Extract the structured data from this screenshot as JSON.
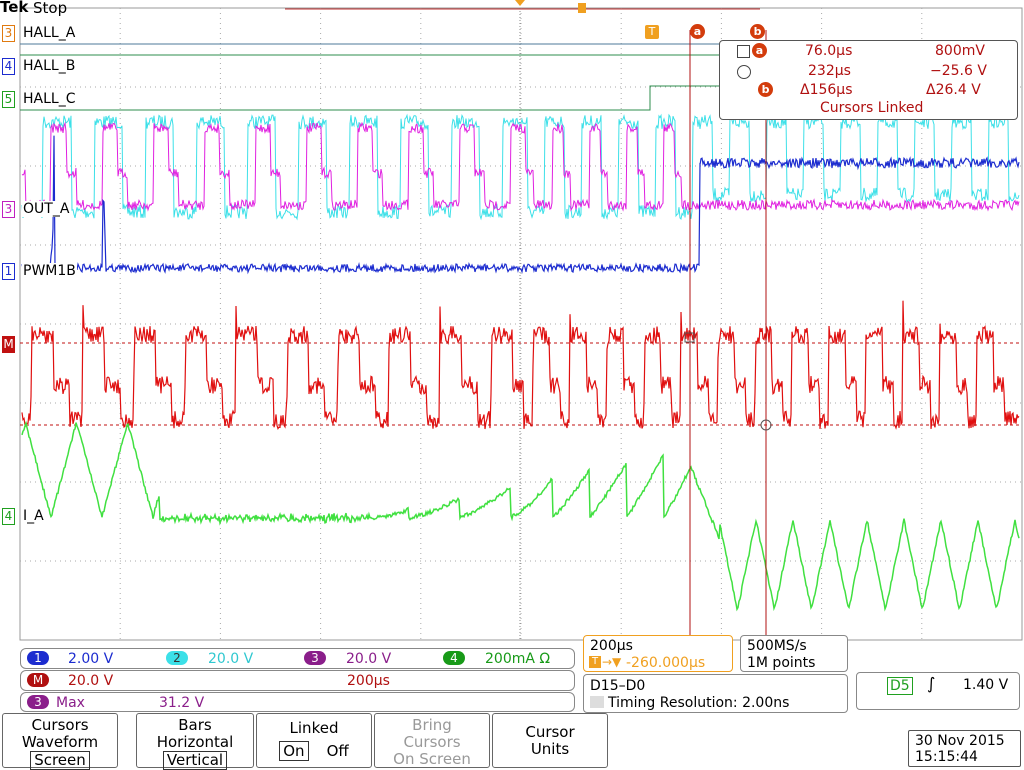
{
  "header": {
    "brand": "Tek",
    "status": "Stop"
  },
  "trigger_marker": "T",
  "cursor_names": [
    "a",
    "b"
  ],
  "channel_labels": [
    {
      "tag": "3",
      "name": "HALL_A"
    },
    {
      "tag": "4",
      "name": "HALL_B"
    },
    {
      "tag": "5",
      "name": "HALL_C"
    },
    {
      "tag": "3",
      "name": "OUT_A"
    },
    {
      "tag": "1",
      "name": "PWM1B"
    },
    {
      "tag": "4",
      "name": "I_A"
    }
  ],
  "math_tag": "M",
  "readout": {
    "a_time": "76.0µs",
    "a_value": "800mV",
    "b_time": "232µs",
    "b_value": "−25.6 V",
    "delta_time": "Δ156µs",
    "delta_value": "Δ26.4 V",
    "status": "Cursors Linked"
  },
  "scales": [
    {
      "tag": "1",
      "value": "2.00 V"
    },
    {
      "tag": "2",
      "value": "20.0 V"
    },
    {
      "tag": "3",
      "value": "20.0 V"
    },
    {
      "tag": "4",
      "value": "200mA Ω"
    }
  ],
  "math": {
    "tag": "M",
    "scale": "20.0 V",
    "timebase": "200µs"
  },
  "measurement": {
    "tag": "3",
    "name": "Max",
    "value": "31.2 V"
  },
  "horizontal": {
    "scale": "200µs",
    "position": "-260.000µs"
  },
  "acquisition": {
    "rate": "500MS/s",
    "length": "1M points"
  },
  "digital": {
    "bus": "D15–D0",
    "resolution": "Timing Resolution: 2.00ns"
  },
  "trigger": {
    "source": "D5",
    "level": "1.40 V"
  },
  "menu": [
    {
      "lines": [
        "Cursors",
        "Waveform",
        "Screen"
      ]
    },
    {
      "lines": [
        "Bars",
        "Horizontal",
        "Vertical"
      ]
    },
    {
      "lines": [
        "Linked"
      ],
      "options": [
        "On",
        "Off"
      ]
    },
    {
      "lines": [
        "Bring",
        "Cursors",
        "On Screen"
      ]
    },
    {
      "lines": [
        "Cursor",
        "Units"
      ]
    }
  ],
  "datetime": {
    "date": "30 Nov 2015",
    "time": "15:15:44"
  }
}
